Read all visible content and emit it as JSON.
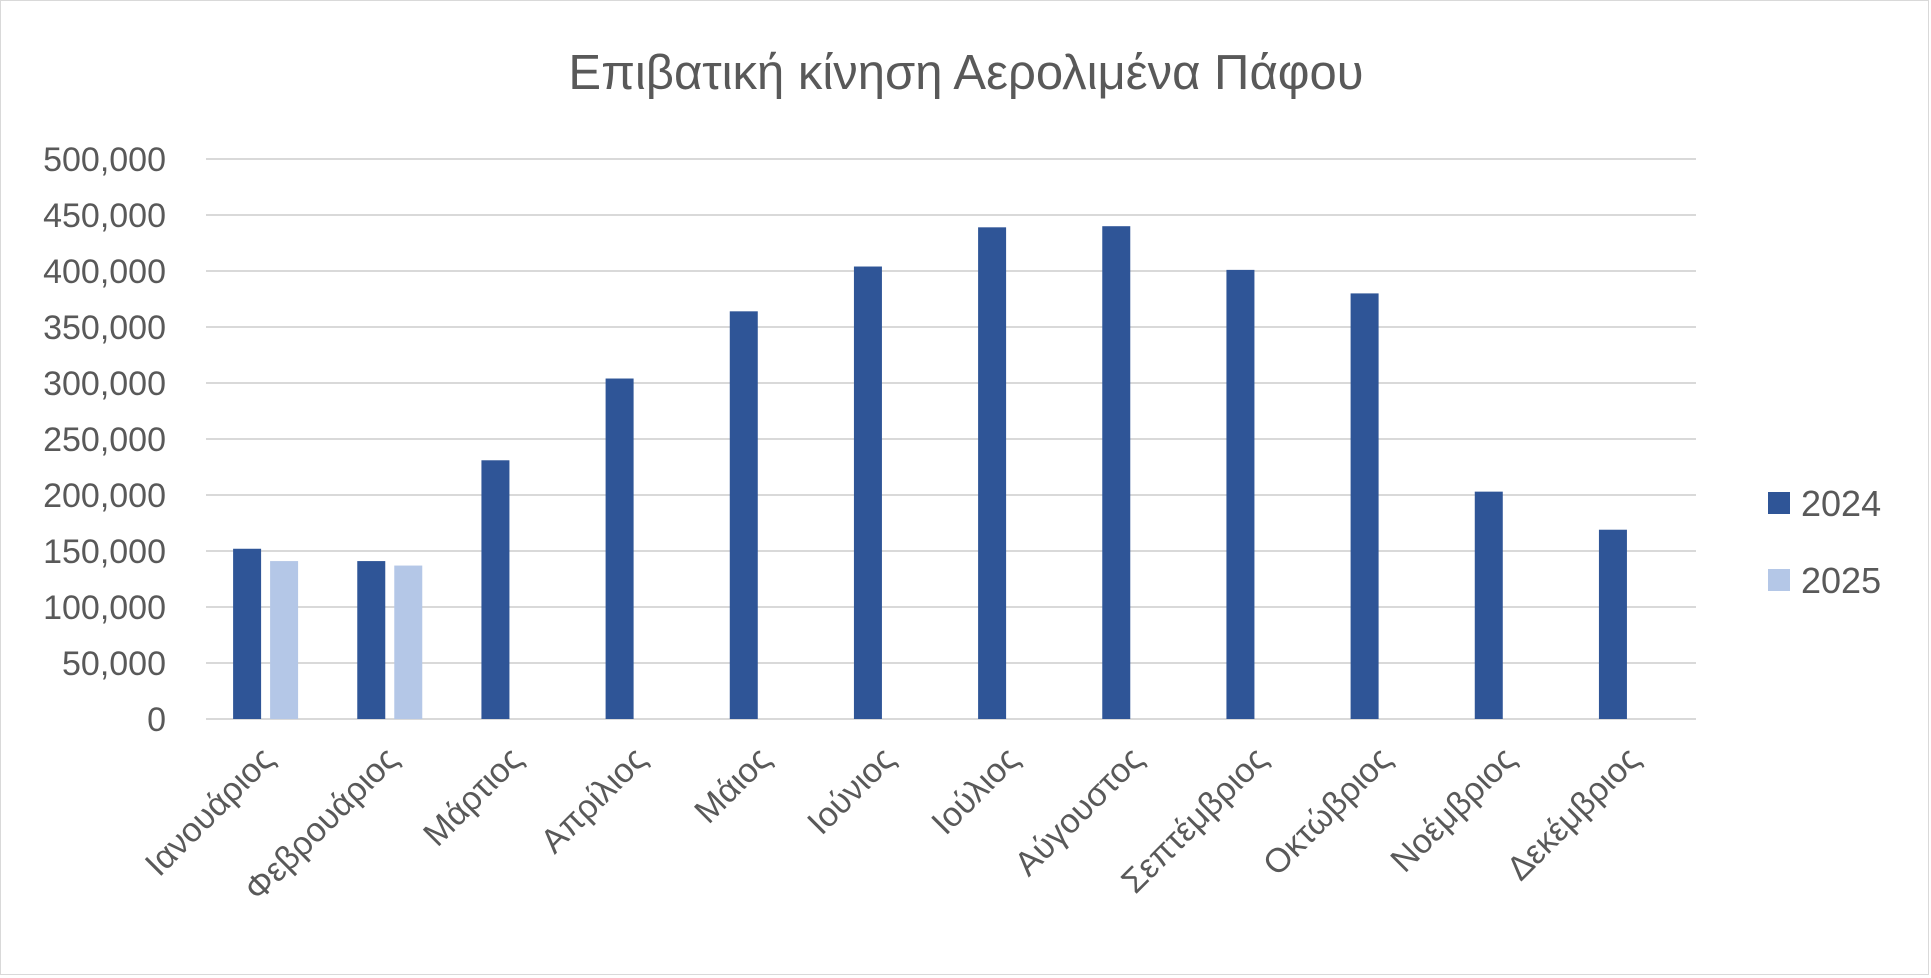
{
  "chart_data": {
    "type": "bar",
    "title": "Επιβατική κίνηση Αερολιμένα Πάφου",
    "xlabel": "",
    "ylabel": "",
    "categories": [
      "Ιανουάριος",
      "Φεβρουάριος",
      "Μάρτιος",
      "Απρίλιος",
      "Μάιος",
      "Ιούνιος",
      "Ιούλιος",
      "Αύγουστος",
      "Σεπτέμβριος",
      "Οκτώβριος",
      "Νοέμβριος",
      "Δεκέμβριος"
    ],
    "series": [
      {
        "name": "2024",
        "color": "#2F5597",
        "values": [
          152000,
          141000,
          231000,
          304000,
          364000,
          404000,
          439000,
          440000,
          401000,
          380000,
          203000,
          169000
        ]
      },
      {
        "name": "2025",
        "color": "#B4C7E7",
        "values": [
          141000,
          137000,
          null,
          null,
          null,
          null,
          null,
          null,
          null,
          null,
          null,
          null
        ]
      }
    ],
    "ylim": [
      0,
      500000
    ],
    "yticks": [
      0,
      50000,
      100000,
      150000,
      200000,
      250000,
      300000,
      350000,
      400000,
      450000,
      500000
    ],
    "ytick_labels": [
      "0",
      "50,000",
      "100,000",
      "150,000",
      "200,000",
      "250,000",
      "300,000",
      "350,000",
      "400,000",
      "450,000",
      "500,000"
    ],
    "grid": true,
    "legend_position": "right"
  }
}
